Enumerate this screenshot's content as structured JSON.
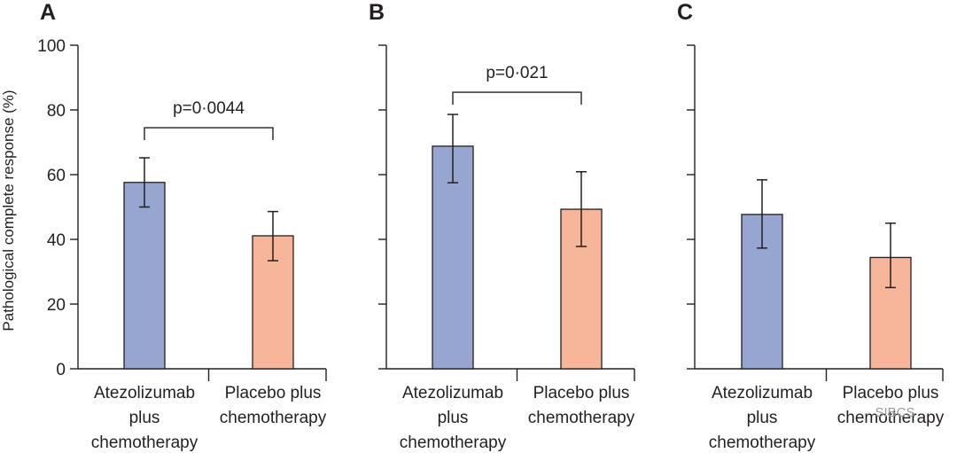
{
  "chart_data": [
    {
      "type": "bar",
      "panel": "A",
      "ylabel": "Pathological complete response (%)",
      "ylim": [
        0,
        100
      ],
      "yticks": [
        0,
        20,
        40,
        60,
        80,
        100
      ],
      "show_tick_labels": true,
      "categories": [
        [
          "Atezolizumab",
          "plus",
          "chemotherapy"
        ],
        [
          "Placebo plus",
          "chemotherapy"
        ]
      ],
      "values": [
        57.6,
        41.1
      ],
      "ci_low": [
        50.0,
        33.4
      ],
      "ci_high": [
        65.2,
        48.6
      ],
      "colors": [
        "#97a6d1",
        "#f7b599"
      ],
      "p_value": "p=0·0044"
    },
    {
      "type": "bar",
      "panel": "B",
      "ylim": [
        0,
        100
      ],
      "yticks": [
        0,
        20,
        40,
        60,
        80,
        100
      ],
      "show_tick_labels": false,
      "categories": [
        [
          "Atezolizumab",
          "plus",
          "chemotherapy"
        ],
        [
          "Placebo plus",
          "chemotherapy"
        ]
      ],
      "values": [
        68.8,
        49.3
      ],
      "ci_low": [
        57.5,
        37.8
      ],
      "ci_high": [
        78.6,
        60.9
      ],
      "colors": [
        "#97a6d1",
        "#f7b599"
      ],
      "p_value": "p=0·021"
    },
    {
      "type": "bar",
      "panel": "C",
      "ylim": [
        0,
        100
      ],
      "yticks": [
        0,
        20,
        40,
        60,
        80,
        100
      ],
      "show_tick_labels": false,
      "categories": [
        [
          "Atezolizumab",
          "plus",
          "chemotherapy"
        ],
        [
          "Placebo plus",
          "chemotherapy"
        ]
      ],
      "values": [
        47.7,
        34.4
      ],
      "ci_low": [
        37.3,
        25.1
      ],
      "ci_high": [
        58.4,
        45.0
      ],
      "colors": [
        "#97a6d1",
        "#f7b599"
      ],
      "p_value": null
    }
  ],
  "watermark": "SIBCS"
}
